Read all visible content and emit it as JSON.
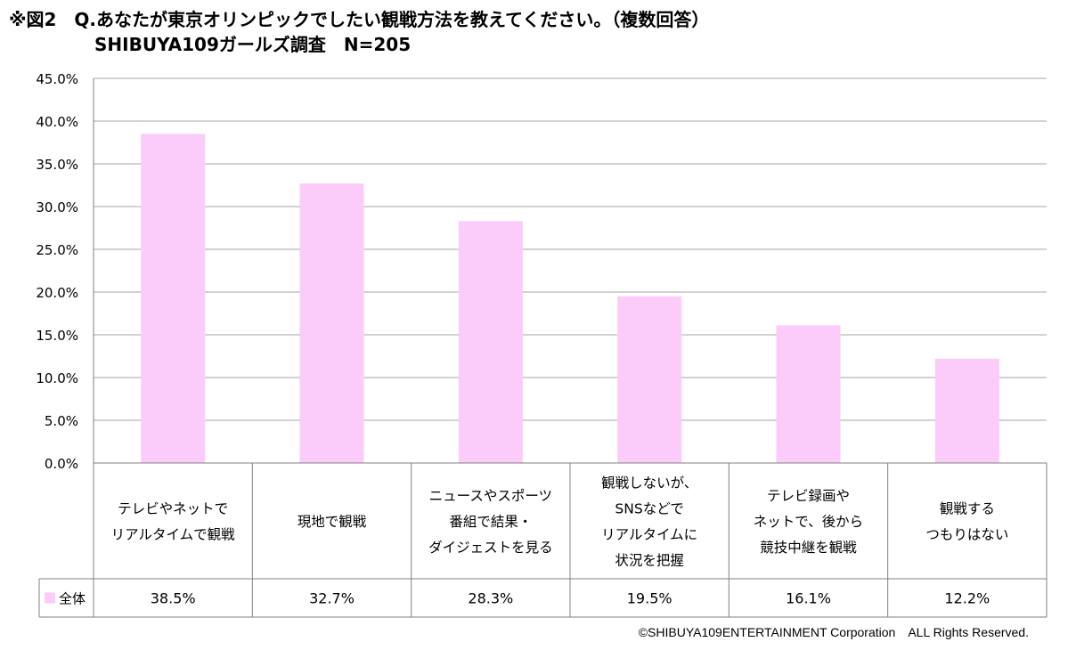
{
  "title": {
    "line1": "※図2　Q.あなたが東京オリンピックでしたい観戦方法を教えてください。（複数回答）",
    "line2": "SHIBUYA109ガールズ調査　N=205"
  },
  "chart_data": {
    "type": "bar",
    "categories": [
      [
        "テレビやネットで",
        "リアルタイムで観戦"
      ],
      [
        "現地で観戦"
      ],
      [
        "ニュースやスポーツ",
        "番組で結果・",
        "ダイジェストを見る"
      ],
      [
        "観戦しないが、",
        "SNSなどで",
        "リアルタイムに",
        "状況を把握"
      ],
      [
        "テレビ録画や",
        "ネットで、後から",
        "競技中継を観戦"
      ],
      [
        "観戦する",
        "つもりはない"
      ]
    ],
    "series": [
      {
        "name": "全体",
        "values": [
          38.5,
          32.7,
          28.3,
          19.5,
          16.1,
          12.2
        ],
        "color": "#fbcbfa"
      }
    ],
    "value_labels": [
      "38.5%",
      "32.7%",
      "28.3%",
      "19.5%",
      "16.1%",
      "12.2%"
    ],
    "yticks": [
      "0.0%",
      "5.0%",
      "10.0%",
      "15.0%",
      "20.0%",
      "25.0%",
      "30.0%",
      "35.0%",
      "40.0%",
      "45.0%"
    ],
    "ylim": [
      0,
      45
    ],
    "ystep": 5,
    "grid": true,
    "legend": "data-table"
  },
  "copyright": "©SHIBUYA109ENTERTAINMENT Corporation　ALL Rights Reserved.",
  "colors": {
    "bar": "#fbcbfa",
    "grid": "#a6a6a6",
    "axis": "#808080"
  }
}
